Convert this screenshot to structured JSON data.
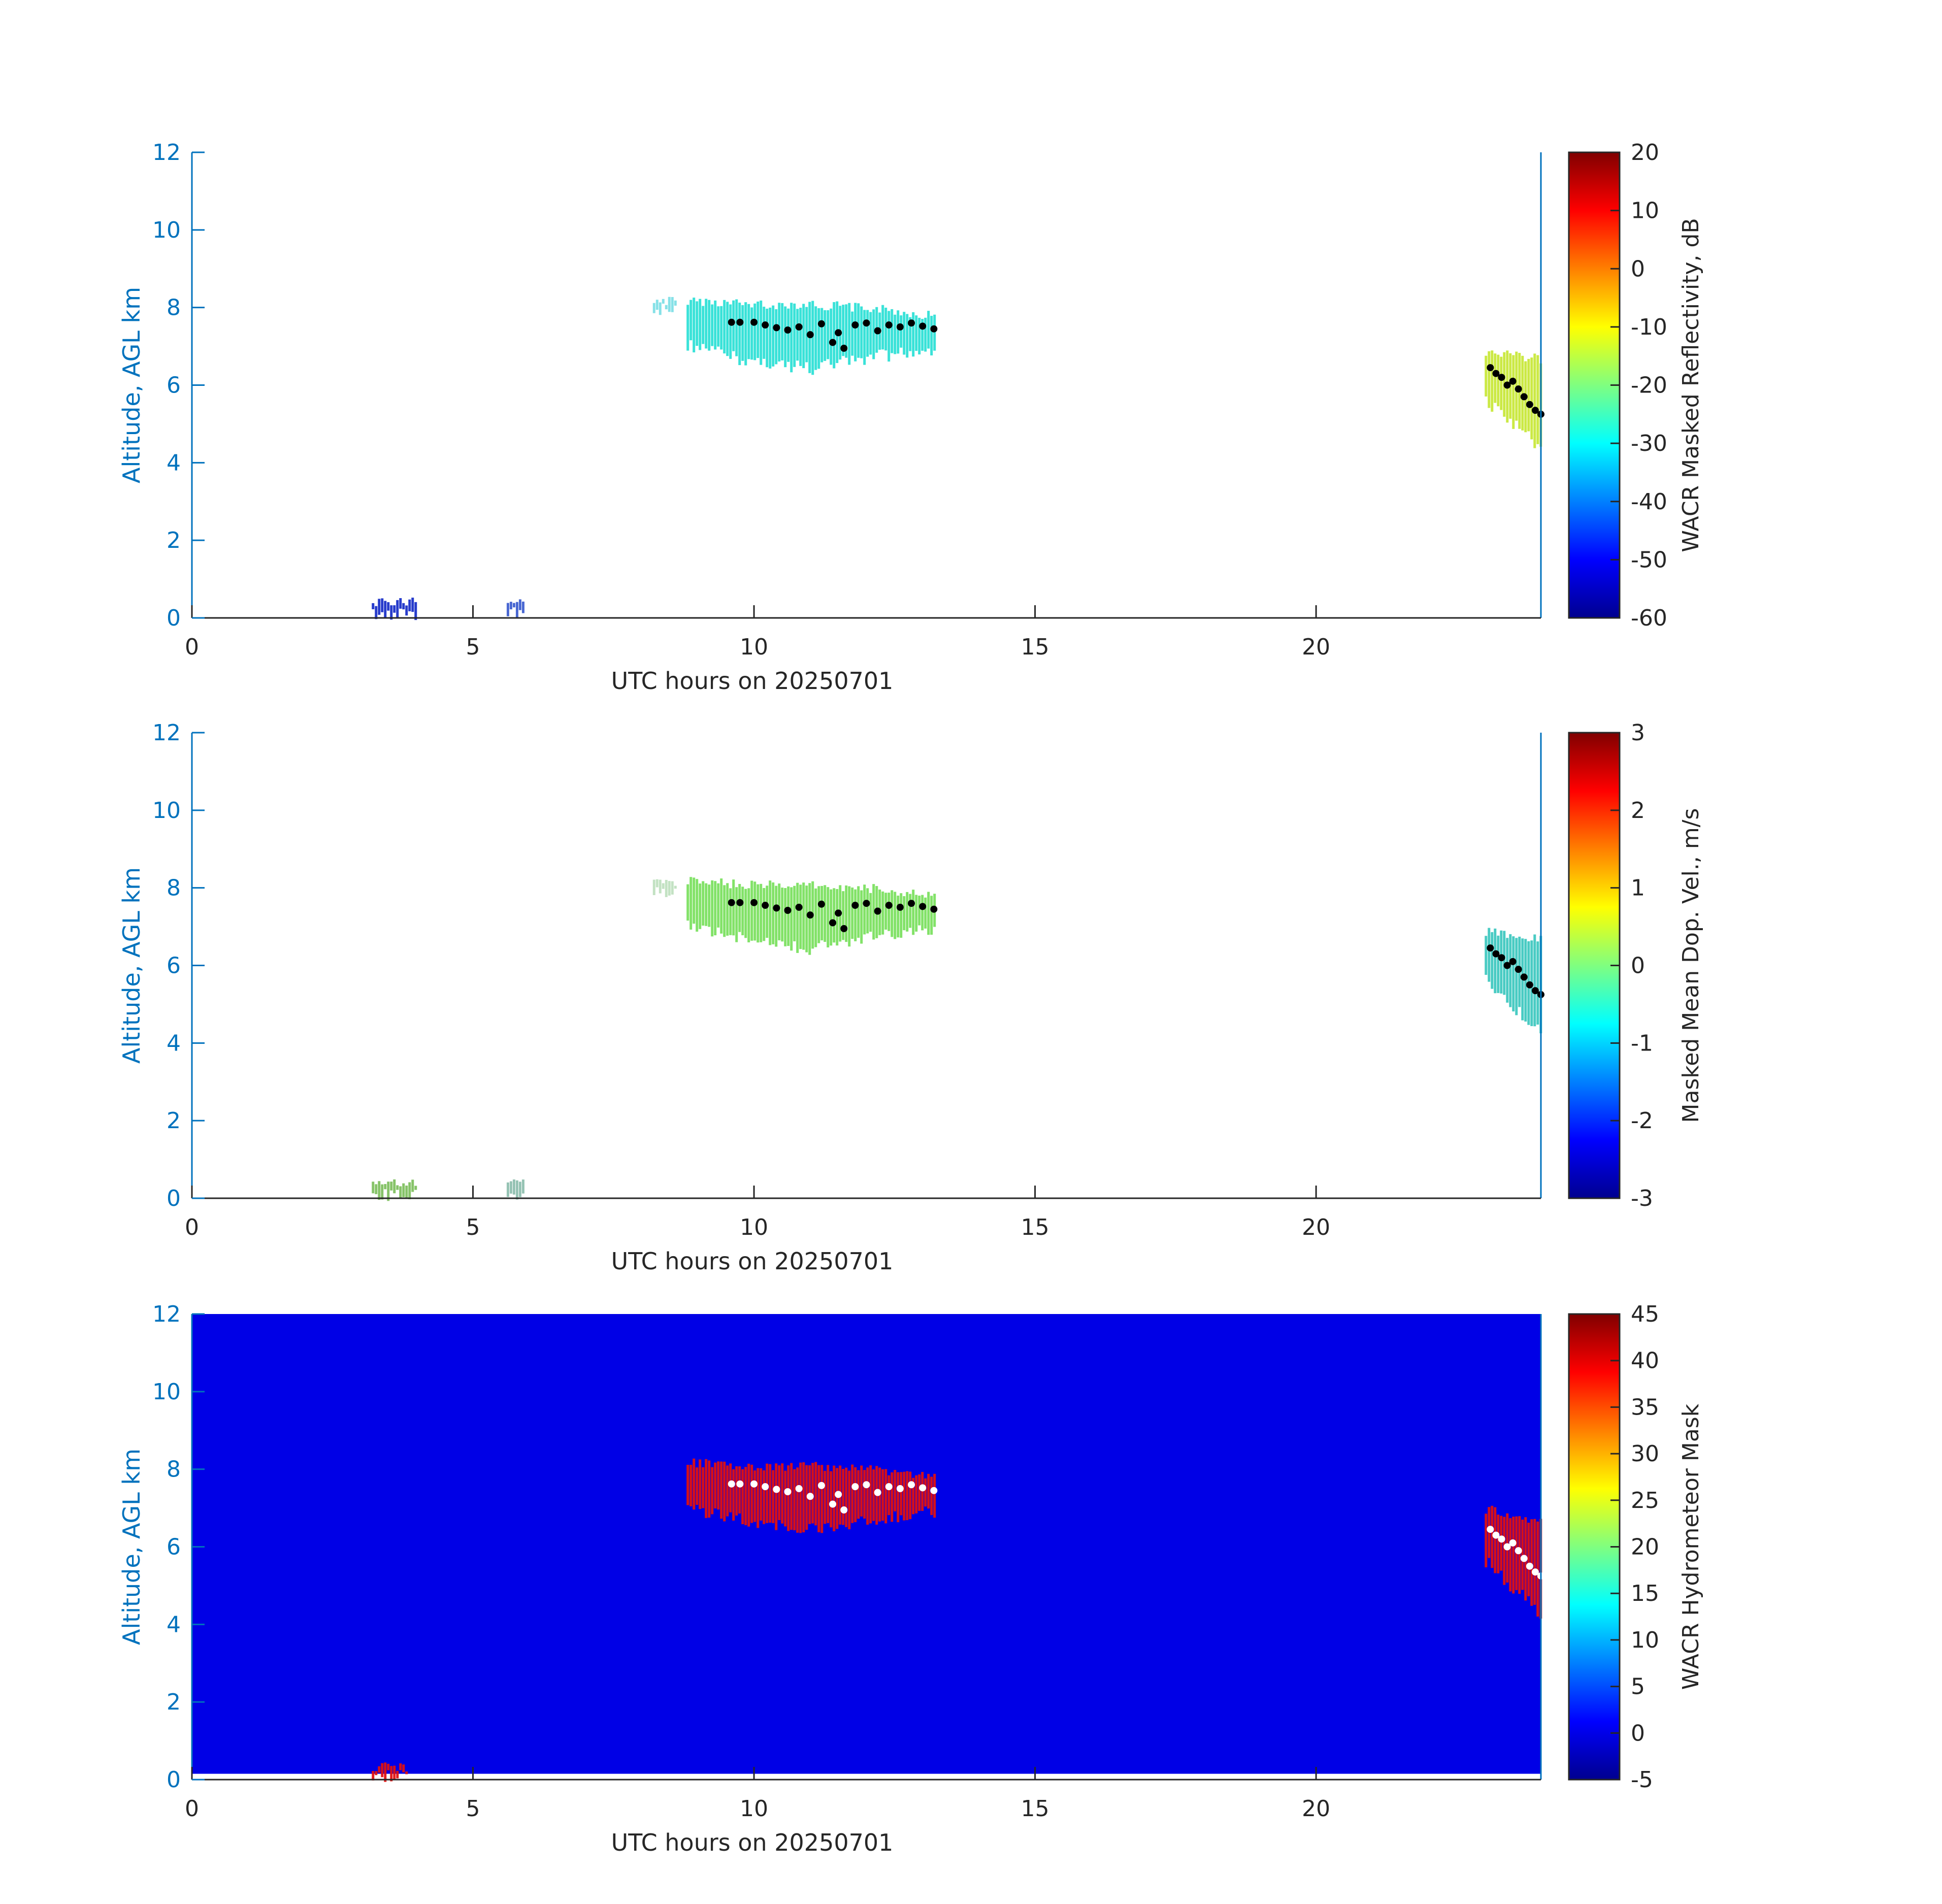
{
  "figure": {
    "x_tick_labels": [
      "0",
      "5",
      "10",
      "15",
      "20"
    ],
    "y_tick_labels": [
      "0",
      "2",
      "4",
      "6",
      "8",
      "10",
      "12"
    ],
    "axis_color": "#0072bd",
    "tick_label_color": "#262626",
    "colormap": "jet"
  },
  "chart_data": [
    {
      "type": "heatmap",
      "title": "",
      "xlabel": "UTC hours on 20250701",
      "ylabel": "Altitude, AGL km",
      "xlim": [
        0,
        24
      ],
      "ylim": [
        0,
        12
      ],
      "xticks": [
        0,
        5,
        10,
        15,
        20
      ],
      "yticks": [
        0,
        2,
        4,
        6,
        8,
        10,
        12
      ],
      "background": "#ffffff",
      "colorbar": {
        "label": "WACR Masked Reflectivity, dB",
        "range": [
          -60,
          20
        ],
        "ticks": [
          20,
          10,
          0,
          -10,
          -20,
          -30,
          -40,
          -50,
          -60
        ],
        "tick_labels": [
          "20",
          "10",
          "0",
          "-10",
          "-20",
          "-30",
          "-40",
          "-50",
          "-60"
        ]
      },
      "regions": [
        {
          "name": "upper cloud layer",
          "x": [
            8.8,
            13.2
          ],
          "y_bottom": [
            7.2,
            6.8,
            6.6,
            6.9,
            7.1
          ],
          "y_top": [
            8.3,
            8.2,
            8.2,
            8.1,
            7.9
          ],
          "value_range": [
            -35,
            -25
          ],
          "color": "#2ee0d6"
        },
        {
          "name": "faint echo",
          "x": [
            8.2,
            8.6
          ],
          "y_bottom": [
            8.1
          ],
          "y_top": [
            8.3
          ],
          "value_range": [
            -30,
            -25
          ],
          "color": "#7fdfe6"
        },
        {
          "name": "late cloud",
          "x": [
            23.0,
            24.0
          ],
          "y_bottom": [
            5.8,
            4.5
          ],
          "y_top": [
            7.0,
            6.8
          ],
          "value_range": [
            -25,
            -10
          ],
          "color": "#c8e83a"
        },
        {
          "name": "low clutter",
          "x": [
            3.2,
            4.0
          ],
          "y_bottom": [
            0.25
          ],
          "y_top": [
            0.55
          ],
          "value_range": [
            -55,
            -45
          ],
          "color": "#1a30c8"
        },
        {
          "name": "low clutter",
          "x": [
            5.6,
            5.9
          ],
          "y_bottom": [
            0.3
          ],
          "y_top": [
            0.55
          ],
          "value_range": [
            -55,
            -45
          ],
          "color": "#4060d0"
        }
      ],
      "cloud_base_markers": {
        "color": "#000000",
        "points": [
          [
            9.6,
            7.62
          ],
          [
            9.75,
            7.62
          ],
          [
            10.0,
            7.62
          ],
          [
            10.2,
            7.55
          ],
          [
            10.4,
            7.48
          ],
          [
            10.6,
            7.42
          ],
          [
            10.8,
            7.5
          ],
          [
            11.0,
            7.3
          ],
          [
            11.2,
            7.58
          ],
          [
            11.4,
            7.1
          ],
          [
            11.5,
            7.35
          ],
          [
            11.6,
            6.95
          ],
          [
            11.8,
            7.55
          ],
          [
            12.0,
            7.6
          ],
          [
            12.2,
            7.4
          ],
          [
            12.4,
            7.55
          ],
          [
            12.6,
            7.5
          ],
          [
            12.8,
            7.6
          ],
          [
            13.0,
            7.52
          ],
          [
            13.2,
            7.45
          ],
          [
            23.1,
            6.45
          ],
          [
            23.2,
            6.3
          ],
          [
            23.3,
            6.2
          ],
          [
            23.4,
            6.0
          ],
          [
            23.5,
            6.1
          ],
          [
            23.6,
            5.9
          ],
          [
            23.7,
            5.7
          ],
          [
            23.8,
            5.5
          ],
          [
            23.9,
            5.35
          ],
          [
            24.0,
            5.25
          ]
        ]
      }
    },
    {
      "type": "heatmap",
      "title": "",
      "xlabel": "UTC hours on 20250701",
      "ylabel": "Altitude, AGL km",
      "xlim": [
        0,
        24
      ],
      "ylim": [
        0,
        12
      ],
      "xticks": [
        0,
        5,
        10,
        15,
        20
      ],
      "yticks": [
        0,
        2,
        4,
        6,
        8,
        10,
        12
      ],
      "background": "#ffffff",
      "colorbar": {
        "label": "Masked Mean Dop. Vel., m/s",
        "range": [
          -3,
          3
        ],
        "ticks": [
          3,
          2,
          1,
          0,
          -1,
          -2,
          -3
        ],
        "tick_labels": [
          "3",
          "2",
          "1",
          "0",
          "-1",
          "-2",
          "-3"
        ]
      },
      "regions": [
        {
          "name": "upper cloud layer",
          "x": [
            8.8,
            13.2
          ],
          "y_bottom": [
            7.2,
            6.8,
            6.6,
            6.9,
            7.1
          ],
          "y_top": [
            8.3,
            8.2,
            8.2,
            8.1,
            7.9
          ],
          "value_range": [
            -1,
            0.5
          ],
          "color": "#7be060"
        },
        {
          "name": "faint echo",
          "x": [
            8.2,
            8.6
          ],
          "y_bottom": [
            8.1
          ],
          "y_top": [
            8.3
          ],
          "value_range": [
            0,
            0.5
          ],
          "color": "#c0e0c0"
        },
        {
          "name": "late cloud",
          "x": [
            23.0,
            24.0
          ],
          "y_bottom": [
            5.8,
            4.4
          ],
          "y_top": [
            7.0,
            6.8
          ],
          "value_range": [
            -1.5,
            0.5
          ],
          "color": "#3fc8c0"
        },
        {
          "name": "low clutter",
          "x": [
            3.2,
            4.0
          ],
          "y_bottom": [
            0.25
          ],
          "y_top": [
            0.5
          ],
          "value_range": [
            0,
            0.5
          ],
          "color": "#80c060"
        },
        {
          "name": "low clutter",
          "x": [
            5.6,
            5.9
          ],
          "y_bottom": [
            0.3
          ],
          "y_top": [
            0.5
          ],
          "value_range": [
            0,
            0.5
          ],
          "color": "#90c0b0"
        }
      ],
      "cloud_base_markers": {
        "color": "#000000",
        "points": [
          [
            9.6,
            7.62
          ],
          [
            9.75,
            7.62
          ],
          [
            10.0,
            7.62
          ],
          [
            10.2,
            7.55
          ],
          [
            10.4,
            7.48
          ],
          [
            10.6,
            7.42
          ],
          [
            10.8,
            7.5
          ],
          [
            11.0,
            7.3
          ],
          [
            11.2,
            7.58
          ],
          [
            11.4,
            7.1
          ],
          [
            11.5,
            7.35
          ],
          [
            11.6,
            6.95
          ],
          [
            11.8,
            7.55
          ],
          [
            12.0,
            7.6
          ],
          [
            12.2,
            7.4
          ],
          [
            12.4,
            7.55
          ],
          [
            12.6,
            7.5
          ],
          [
            12.8,
            7.6
          ],
          [
            13.0,
            7.52
          ],
          [
            13.2,
            7.45
          ],
          [
            23.1,
            6.45
          ],
          [
            23.2,
            6.3
          ],
          [
            23.3,
            6.2
          ],
          [
            23.4,
            6.0
          ],
          [
            23.5,
            6.1
          ],
          [
            23.6,
            5.9
          ],
          [
            23.7,
            5.7
          ],
          [
            23.8,
            5.5
          ],
          [
            23.9,
            5.35
          ],
          [
            24.0,
            5.25
          ]
        ]
      }
    },
    {
      "type": "heatmap",
      "title": "",
      "xlabel": "UTC hours on 20250701",
      "ylabel": "Altitude, AGL km",
      "xlim": [
        0,
        24
      ],
      "ylim": [
        0,
        12
      ],
      "xticks": [
        0,
        5,
        10,
        15,
        20
      ],
      "yticks": [
        0,
        2,
        4,
        6,
        8,
        10,
        12
      ],
      "background": "#0000e6",
      "background_value": 0,
      "surface_gap_km": 0.15,
      "colorbar": {
        "label": "WACR Hydrometeor Mask",
        "range": [
          -5,
          45
        ],
        "ticks": [
          45,
          40,
          35,
          30,
          25,
          20,
          15,
          10,
          5,
          0,
          -5
        ],
        "tick_labels": [
          "45",
          "40",
          "35",
          "30",
          "25",
          "20",
          "15",
          "10",
          "5",
          "0",
          "-5"
        ]
      },
      "regions": [
        {
          "name": "upper cloud layer",
          "x": [
            8.8,
            13.2
          ],
          "y_bottom": [
            7.2,
            6.8,
            6.6,
            6.9,
            7.1
          ],
          "y_top": [
            8.3,
            8.2,
            8.2,
            8.1,
            7.9
          ],
          "value_range": [
            40,
            40
          ],
          "color": "#e01010"
        },
        {
          "name": "late cloud",
          "x": [
            23.0,
            24.0
          ],
          "y_bottom": [
            5.8,
            4.4
          ],
          "y_top": [
            7.1,
            6.8
          ],
          "value_range": [
            40,
            40
          ],
          "color": "#e01010"
        },
        {
          "name": "low clutter",
          "x": [
            3.2,
            3.8
          ],
          "y_bottom": [
            0.25
          ],
          "y_top": [
            0.45
          ],
          "value_range": [
            40,
            40
          ],
          "color": "#e01010"
        }
      ],
      "cloud_base_markers": {
        "color": "#ffffff",
        "points": [
          [
            9.6,
            7.62
          ],
          [
            9.75,
            7.62
          ],
          [
            10.0,
            7.62
          ],
          [
            10.2,
            7.55
          ],
          [
            10.4,
            7.48
          ],
          [
            10.6,
            7.42
          ],
          [
            10.8,
            7.5
          ],
          [
            11.0,
            7.3
          ],
          [
            11.2,
            7.58
          ],
          [
            11.4,
            7.1
          ],
          [
            11.5,
            7.35
          ],
          [
            11.6,
            6.95
          ],
          [
            11.8,
            7.55
          ],
          [
            12.0,
            7.6
          ],
          [
            12.2,
            7.4
          ],
          [
            12.4,
            7.55
          ],
          [
            12.6,
            7.5
          ],
          [
            12.8,
            7.6
          ],
          [
            13.0,
            7.52
          ],
          [
            13.2,
            7.45
          ],
          [
            23.1,
            6.45
          ],
          [
            23.2,
            6.3
          ],
          [
            23.3,
            6.2
          ],
          [
            23.4,
            6.0
          ],
          [
            23.5,
            6.1
          ],
          [
            23.6,
            5.9
          ],
          [
            23.7,
            5.7
          ],
          [
            23.8,
            5.5
          ],
          [
            23.9,
            5.35
          ],
          [
            24.0,
            5.25
          ]
        ]
      }
    }
  ]
}
